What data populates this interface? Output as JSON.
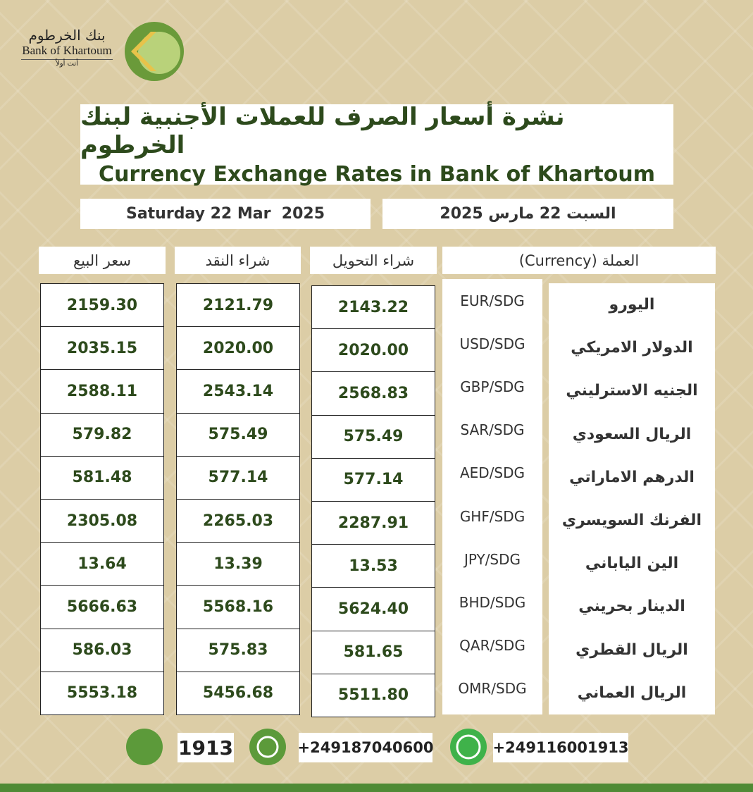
{
  "logo": {
    "name_ar": "بنك الخرطوم",
    "name_en": "Bank of Khartoum",
    "slogan": "أنت أولاً"
  },
  "header": {
    "title_ar": "نشرة أسعار الصرف للعملات الأجنبية لبنك الخرطوم",
    "title_en": "Currency Exchange Rates in Bank of Khartoum"
  },
  "date": {
    "en": "Saturday 22 Mar  2025",
    "ar": "السبت 22 مارس 2025"
  },
  "table": {
    "headers": [
      "سعر البيع",
      "شراء النقد",
      "شراء التحويل",
      "العملة (Currency)"
    ],
    "rows": [
      [
        "اليورو",
        "EUR/SDG",
        "2143.22",
        "2121.79",
        "2159.30"
      ],
      [
        "الدولار الامريكي",
        "USD/SDG",
        "2020.00",
        "2020.00",
        "2035.15"
      ],
      [
        "الجنيه الاسترليني",
        "GBP/SDG",
        "2568.83",
        "2543.14",
        "2588.11"
      ],
      [
        "الريال السعودي",
        "SAR/SDG",
        "575.49",
        "575.49",
        "579.82"
      ],
      [
        "الدرهم الاماراتي",
        "AED/SDG",
        "577.14",
        "577.14",
        "581.48"
      ],
      [
        "الفرنك السويسري",
        "GHF/SDG",
        "2287.91",
        "2265.03",
        "2305.08"
      ],
      [
        "الين الياباني",
        "JPY/SDG",
        "13.53",
        "13.39",
        "13.64"
      ],
      [
        "الدينار بحريني",
        "BHD/SDG",
        "5624.40",
        "5568.16",
        "5666.63"
      ],
      [
        "الريال القطري",
        "QAR/SDG",
        "581.65",
        "575.83",
        "586.03"
      ],
      [
        "الريال العماني",
        "OMR/SDG",
        "5511.80",
        "5456.68",
        "5553.18"
      ]
    ]
  },
  "contacts": [
    "1913",
    "+249187040600",
    "+249116001913"
  ]
}
